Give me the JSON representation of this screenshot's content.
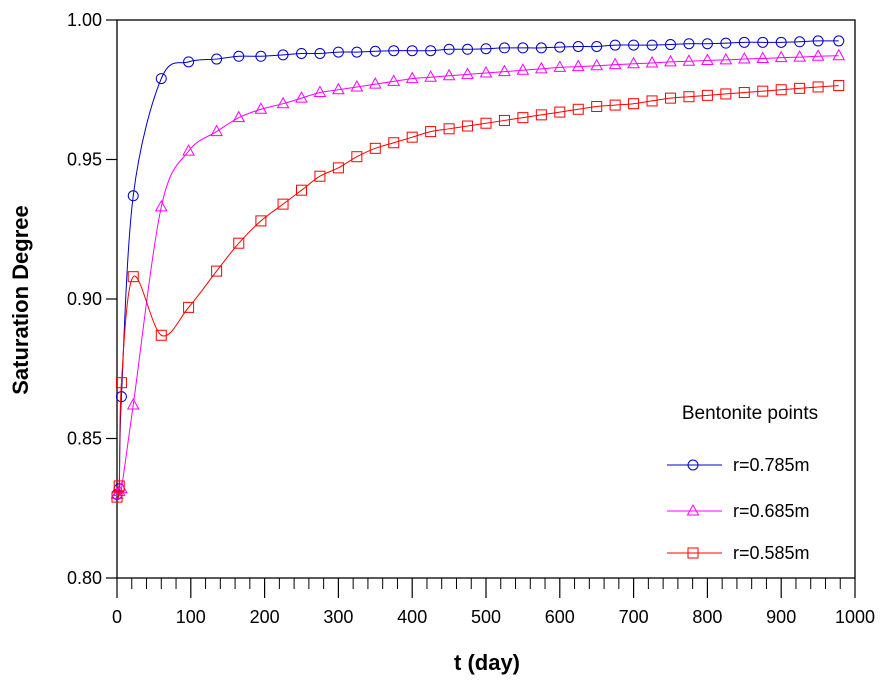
{
  "chart_data": {
    "type": "line",
    "xlabel": "t (day)",
    "ylabel": "Saturation Degree",
    "xlim": [
      0,
      1000
    ],
    "ylim": [
      0.8,
      1.0
    ],
    "x_ticks": [
      0,
      100,
      200,
      300,
      400,
      500,
      600,
      700,
      800,
      900,
      1000
    ],
    "x_tick_labels": [
      "0",
      "100",
      "200",
      "300",
      "400",
      "500",
      "600",
      "700",
      "800",
      "900",
      "1000"
    ],
    "y_ticks": [
      0.8,
      0.85,
      0.9,
      0.95,
      1.0
    ],
    "y_tick_labels": [
      "0.80",
      "0.85",
      "0.90",
      "0.95",
      "1.00"
    ],
    "grid": false,
    "legend": {
      "title": "Bentonite points",
      "placement": "lower-right"
    },
    "series": [
      {
        "name": "r=0.785m",
        "color": "#0000cc",
        "marker": "circle",
        "x": [
          0,
          3,
          6,
          22,
          60,
          97,
          135,
          165,
          195,
          225,
          250,
          275,
          300,
          325,
          350,
          375,
          400,
          425,
          450,
          475,
          500,
          525,
          550,
          575,
          600,
          625,
          650,
          675,
          700,
          725,
          750,
          775,
          800,
          825,
          850,
          875,
          900,
          925,
          950,
          978
        ],
        "y": [
          0.83,
          0.832,
          0.865,
          0.937,
          0.979,
          0.985,
          0.986,
          0.987,
          0.987,
          0.9875,
          0.988,
          0.988,
          0.9885,
          0.9885,
          0.9888,
          0.989,
          0.989,
          0.989,
          0.9895,
          0.9895,
          0.9897,
          0.99,
          0.99,
          0.99,
          0.9903,
          0.9905,
          0.9905,
          0.991,
          0.991,
          0.991,
          0.9912,
          0.9915,
          0.9915,
          0.9917,
          0.992,
          0.992,
          0.992,
          0.9922,
          0.9925,
          0.9925
        ]
      },
      {
        "name": "r=0.685m",
        "color": "#ff00ff",
        "marker": "triangle",
        "x": [
          0,
          3,
          6,
          22,
          60,
          97,
          135,
          165,
          195,
          225,
          250,
          275,
          300,
          325,
          350,
          375,
          400,
          425,
          450,
          475,
          500,
          525,
          550,
          575,
          600,
          625,
          650,
          675,
          700,
          725,
          750,
          775,
          800,
          825,
          850,
          875,
          900,
          925,
          950,
          978
        ],
        "y": [
          0.83,
          0.831,
          0.832,
          0.862,
          0.933,
          0.953,
          0.96,
          0.965,
          0.968,
          0.97,
          0.972,
          0.974,
          0.975,
          0.976,
          0.977,
          0.978,
          0.979,
          0.9795,
          0.98,
          0.9805,
          0.981,
          0.9815,
          0.982,
          0.9825,
          0.983,
          0.9833,
          0.9836,
          0.984,
          0.9843,
          0.9846,
          0.985,
          0.9852,
          0.9855,
          0.9857,
          0.986,
          0.9862,
          0.9865,
          0.9867,
          0.987,
          0.9872
        ]
      },
      {
        "name": "r=0.585m",
        "color": "#ff0000",
        "marker": "square",
        "x": [
          0,
          3,
          6,
          22,
          60,
          97,
          135,
          165,
          195,
          225,
          250,
          275,
          300,
          325,
          350,
          375,
          400,
          425,
          450,
          475,
          500,
          525,
          550,
          575,
          600,
          625,
          650,
          675,
          700,
          725,
          750,
          775,
          800,
          825,
          850,
          875,
          900,
          925,
          950,
          978
        ],
        "y": [
          0.829,
          0.833,
          0.87,
          0.908,
          0.887,
          0.897,
          0.91,
          0.92,
          0.928,
          0.934,
          0.939,
          0.944,
          0.947,
          0.951,
          0.954,
          0.956,
          0.958,
          0.96,
          0.961,
          0.962,
          0.963,
          0.964,
          0.965,
          0.966,
          0.967,
          0.968,
          0.969,
          0.9695,
          0.97,
          0.971,
          0.972,
          0.9725,
          0.973,
          0.9735,
          0.974,
          0.9745,
          0.975,
          0.9755,
          0.976,
          0.9765
        ]
      }
    ]
  }
}
